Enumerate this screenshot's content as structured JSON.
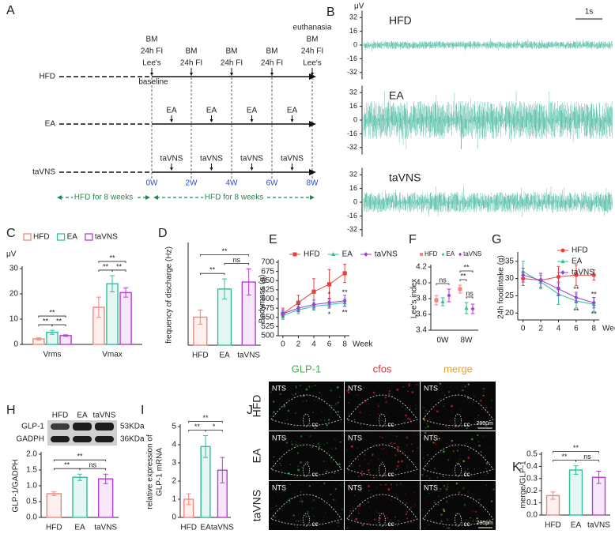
{
  "A": {
    "label": "A",
    "rows": [
      "HFD",
      "EA",
      "taVNS"
    ],
    "timepoints": [
      {
        "week": "0W",
        "notes": [
          "BM",
          "24h FI",
          "Lee's"
        ],
        "below": "baseline"
      },
      {
        "week": "2W",
        "notes": [
          "BM",
          "24h FI"
        ]
      },
      {
        "week": "4W",
        "notes": [
          "BM",
          "24h FI"
        ]
      },
      {
        "week": "6W",
        "notes": [
          "BM",
          "24h FI"
        ]
      },
      {
        "week": "8W",
        "notes": [
          "euthanasia",
          "BM",
          "24h FI",
          "Lee's"
        ]
      }
    ],
    "interventions": [
      [
        "EA",
        "EA",
        "EA",
        "EA"
      ],
      [
        "taVNS",
        "taVNS",
        "taVNS",
        "taVNS"
      ]
    ],
    "phases": [
      "HFD for 8 weeks",
      "HFD for 8 weeks"
    ]
  },
  "B": {
    "label": "B",
    "unit": "μV",
    "scale": "1s",
    "ylim": [
      -40,
      40
    ],
    "yticks": [
      32,
      16,
      0,
      -16,
      -32
    ],
    "panels": [
      "HFD",
      "EA",
      "taVNS"
    ]
  },
  "H": {
    "label": "H",
    "lanes": [
      "HFD",
      "EA",
      "taVNS"
    ],
    "bands": [
      {
        "name": "GLP-1",
        "size": "53KDa"
      },
      {
        "name": "GADPH",
        "size": "36KDa"
      }
    ]
  },
  "J": {
    "label": "J",
    "channels": [
      "GLP-1",
      "cfos",
      "merge"
    ],
    "rows": [
      "HFD",
      "EA",
      "taVNS"
    ],
    "region": "NTS",
    "landmark": "cc",
    "scale": "200μm"
  },
  "chart_data": [
    {
      "label": "C",
      "type": "bar",
      "ylabel": "μV",
      "categories": [
        "Vrms",
        "Vmax"
      ],
      "series": [
        {
          "name": "HFD",
          "color": "#f0877d",
          "values": [
            2.2,
            14.7
          ],
          "errors": [
            0.4,
            4
          ]
        },
        {
          "name": "EA",
          "color": "#2ebf9a",
          "values": [
            4.8,
            24
          ],
          "errors": [
            0.8,
            3.2
          ]
        },
        {
          "name": "taVNS",
          "color": "#b43fd6",
          "values": [
            3.5,
            20.5
          ],
          "errors": [
            0.3,
            1.8
          ]
        }
      ],
      "ylim": [
        0,
        30
      ],
      "yticks": [
        0,
        10,
        20,
        30
      ],
      "legend": "top",
      "significance": [
        {
          "category": 0,
          "pair": [
            0,
            1
          ],
          "text": "**"
        },
        {
          "category": 0,
          "pair": [
            1,
            2
          ],
          "text": "**"
        },
        {
          "category": 0,
          "pair": [
            0,
            2
          ],
          "text": "**"
        },
        {
          "category": 1,
          "pair": [
            0,
            1
          ],
          "text": "**"
        },
        {
          "category": 1,
          "pair": [
            1,
            2
          ],
          "text": "**"
        },
        {
          "category": 1,
          "pair": [
            0,
            2
          ],
          "text": "**"
        }
      ]
    },
    {
      "label": "D",
      "type": "bar",
      "ylabel": "frequency of discharge (Hz)",
      "categories": [
        "HFD",
        "EA",
        "taVNS"
      ],
      "values": [
        280,
        560,
        630
      ],
      "errors": [
        70,
        100,
        130
      ],
      "colors": [
        "#f0877d",
        "#2ebf9a",
        "#b43fd6"
      ],
      "ylim": [
        0,
        1000
      ],
      "significance": [
        {
          "pair": [
            0,
            1
          ],
          "text": "**"
        },
        {
          "pair": [
            1,
            2
          ],
          "text": "ns"
        },
        {
          "pair": [
            0,
            2
          ],
          "text": "**"
        }
      ]
    },
    {
      "label": "E",
      "type": "line",
      "ylabel": "Bodymass (g)",
      "xlabel": "Week",
      "x": [
        0,
        2,
        4,
        6,
        8
      ],
      "xlim": [
        -0.6,
        8.6
      ],
      "xticks": [
        0,
        2,
        4,
        6,
        8
      ],
      "ylim": [
        500,
        700
      ],
      "yticks": [
        500,
        525,
        550,
        575,
        600,
        625,
        650,
        675,
        700
      ],
      "legend": "top",
      "series": [
        {
          "name": "HFD",
          "color": "#e8413c",
          "marker": "square",
          "values": [
            560,
            590,
            620,
            640,
            670
          ],
          "errors": [
            15,
            20,
            35,
            40,
            25
          ]
        },
        {
          "name": "EA",
          "color": "#2ebf9a",
          "marker": "triangle",
          "values": [
            555,
            570,
            580,
            585,
            590
          ],
          "errors": [
            10,
            10,
            10,
            10,
            10
          ]
        },
        {
          "name": "taVNS",
          "color": "#9b3fd6",
          "marker": "diamond",
          "values": [
            560,
            575,
            585,
            590,
            595
          ],
          "errors": [
            10,
            10,
            12,
            12,
            15
          ]
        }
      ],
      "annotations": [
        {
          "series": 2,
          "x": 6,
          "text": "*"
        },
        {
          "series": 1,
          "x": 6,
          "text": "*"
        },
        {
          "series": 2,
          "x": 8,
          "text": "**"
        },
        {
          "series": 1,
          "x": 8,
          "text": "**"
        }
      ]
    },
    {
      "label": "F",
      "type": "dot",
      "ylabel": "Lee's index",
      "categories": [
        "0W",
        "8W"
      ],
      "ylim": [
        3.4,
        4.2
      ],
      "yticks": [
        3.4,
        3.6,
        3.8,
        {
          "value": 4,
          "label": "4.0"
        },
        4.2
      ],
      "legend": "top",
      "series": [
        {
          "name": "HFD",
          "color": "#f0877d",
          "marker": "square",
          "values": [
            3.78,
            3.92
          ],
          "errors": [
            0.06,
            0.05
          ]
        },
        {
          "name": "EA",
          "color": "#2ebf9a",
          "marker": "triangle",
          "values": [
            3.76,
            3.68
          ],
          "errors": [
            0.05,
            0.07
          ]
        },
        {
          "name": "taVNS",
          "color": "#b43fd6",
          "marker": "diamond",
          "values": [
            3.84,
            3.67
          ],
          "errors": [
            0.08,
            0.06
          ]
        }
      ],
      "significance": [
        {
          "category": 0,
          "pair": [
            0,
            2
          ],
          "text": "ns"
        },
        {
          "category": 1,
          "pair": [
            1,
            2
          ],
          "text": "ns"
        },
        {
          "category": 1,
          "pair": [
            0,
            1
          ],
          "text": "**"
        },
        {
          "category": 1,
          "pair": [
            0,
            2
          ],
          "text": "**"
        }
      ]
    },
    {
      "label": "G",
      "type": "line",
      "ylabel": "24h foodintake (g)",
      "xlabel": "Week",
      "x": [
        0,
        2,
        4,
        6,
        8
      ],
      "xlim": [
        -0.6,
        8.6
      ],
      "xticks": [
        0,
        2,
        4,
        6,
        8
      ],
      "ylim": [
        18,
        37
      ],
      "yticks": [
        20,
        25,
        30,
        35
      ],
      "legend": "right",
      "series": [
        {
          "name": "HFD",
          "color": "#e8413c",
          "marker": "circle",
          "values": [
            30,
            29.5,
            30.5,
            31,
            31
          ],
          "errors": [
            2,
            2,
            3,
            3,
            1.5
          ]
        },
        {
          "name": "EA",
          "color": "#2ebf9a",
          "marker": "triangle",
          "values": [
            32,
            29,
            25.5,
            23.5,
            22.5
          ],
          "errors": [
            3,
            2,
            3,
            2,
            2
          ]
        },
        {
          "name": "taVNS",
          "color": "#9b3fd6",
          "marker": "diamond",
          "values": [
            31,
            29.5,
            27,
            24.5,
            23
          ],
          "errors": [
            2,
            2,
            2,
            1.5,
            1.5
          ]
        }
      ],
      "annotations": [
        {
          "series": 2,
          "x": 6,
          "text": "**"
        },
        {
          "series": 1,
          "x": 6,
          "text": "**"
        },
        {
          "series": 2,
          "x": 8,
          "text": "**"
        },
        {
          "series": 1,
          "x": 8,
          "text": "**"
        }
      ]
    },
    {
      "type": "bar",
      "ylabel": "GLP-1/GADPH",
      "categories": [
        "HFD",
        "EA",
        "taVNS"
      ],
      "values": [
        0.75,
        1.27,
        1.22
      ],
      "errors": [
        0.06,
        0.1,
        0.15
      ],
      "colors": [
        "#f0877d",
        "#2ebf9a",
        "#b43fd6"
      ],
      "ylim": [
        0,
        2
      ],
      "yticks": [
        {
          "value": 0,
          "label": "0.0"
        },
        0.5,
        {
          "value": 1,
          "label": "1.0"
        },
        1.5,
        {
          "value": 2,
          "label": "2.0"
        }
      ],
      "significance": [
        {
          "pair": [
            0,
            1
          ],
          "text": "**"
        },
        {
          "pair": [
            1,
            2
          ],
          "text": "ns"
        },
        {
          "pair": [
            0,
            2
          ],
          "text": "**"
        }
      ]
    },
    {
      "label": "I",
      "type": "bar",
      "ylabel": [
        "relative expression of",
        "GLP-1 mRNA"
      ],
      "categories": [
        "HFD",
        "EA",
        "taVNS"
      ],
      "values": [
        1.0,
        3.9,
        2.6
      ],
      "errors": [
        0.3,
        0.6,
        0.7
      ],
      "colors": [
        "#f0877d",
        "#2ebf9a",
        "#b43fd6"
      ],
      "ylim": [
        0,
        5
      ],
      "yticks": [
        0,
        1,
        2,
        3,
        4,
        5
      ],
      "significance": [
        {
          "pair": [
            0,
            1
          ],
          "text": "**"
        },
        {
          "pair": [
            1,
            2
          ],
          "text": "*"
        },
        {
          "pair": [
            0,
            2
          ],
          "text": "**"
        }
      ]
    },
    {
      "label": "K",
      "type": "bar",
      "ylabel": "merge/GLP-1",
      "categories": [
        "HFD",
        "EA",
        "taVNS"
      ],
      "values": [
        0.16,
        0.37,
        0.31
      ],
      "errors": [
        0.03,
        0.035,
        0.05
      ],
      "colors": [
        "#f0877d",
        "#2ebf9a",
        "#b43fd6"
      ],
      "ylim": [
        0,
        0.5
      ],
      "yticks": [
        {
          "value": 0,
          "label": "0.0"
        },
        0.1,
        0.2,
        0.3,
        0.4,
        0.5
      ],
      "significance": [
        {
          "pair": [
            0,
            1
          ],
          "text": "**"
        },
        {
          "pair": [
            1,
            2
          ],
          "text": "ns"
        },
        {
          "pair": [
            0,
            2
          ],
          "text": "**"
        }
      ]
    }
  ]
}
